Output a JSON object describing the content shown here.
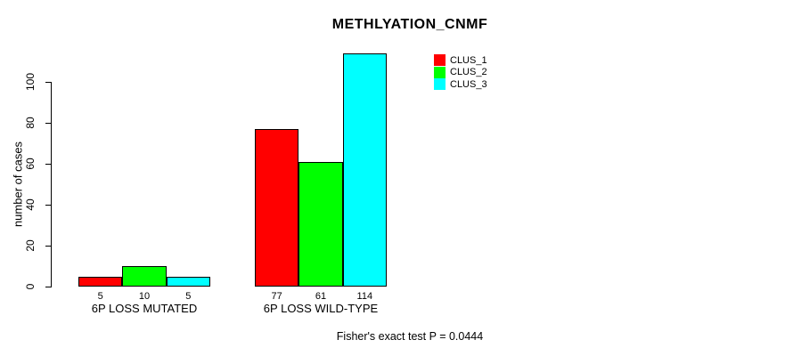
{
  "chart_data": {
    "type": "bar",
    "title": "METHLYATION_CNMF",
    "ylabel": "number of cases",
    "xlabel": "",
    "categories": [
      "6P LOSS MUTATED",
      "6P LOSS WILD-TYPE"
    ],
    "series": [
      {
        "name": "CLUS_1",
        "color": "#ff0000",
        "values": [
          5,
          77
        ]
      },
      {
        "name": "CLUS_2",
        "color": "#00ff00",
        "values": [
          10,
          61
        ]
      },
      {
        "name": "CLUS_3",
        "color": "#00ffff",
        "values": [
          5,
          114
        ]
      }
    ],
    "bar_value_labels": [
      [
        "5",
        "10",
        "5"
      ],
      [
        "77",
        "61",
        "114"
      ]
    ],
    "yticks": [
      0,
      20,
      40,
      60,
      80,
      100
    ],
    "ylim": [
      0,
      114
    ],
    "grid": false,
    "legend_position": "top-right",
    "annotation": "Fisher's exact test P = 0.0444"
  },
  "colors": {
    "background": "#ffffff",
    "text": "#000000",
    "bar_border": "#000000",
    "axis": "#000000"
  }
}
